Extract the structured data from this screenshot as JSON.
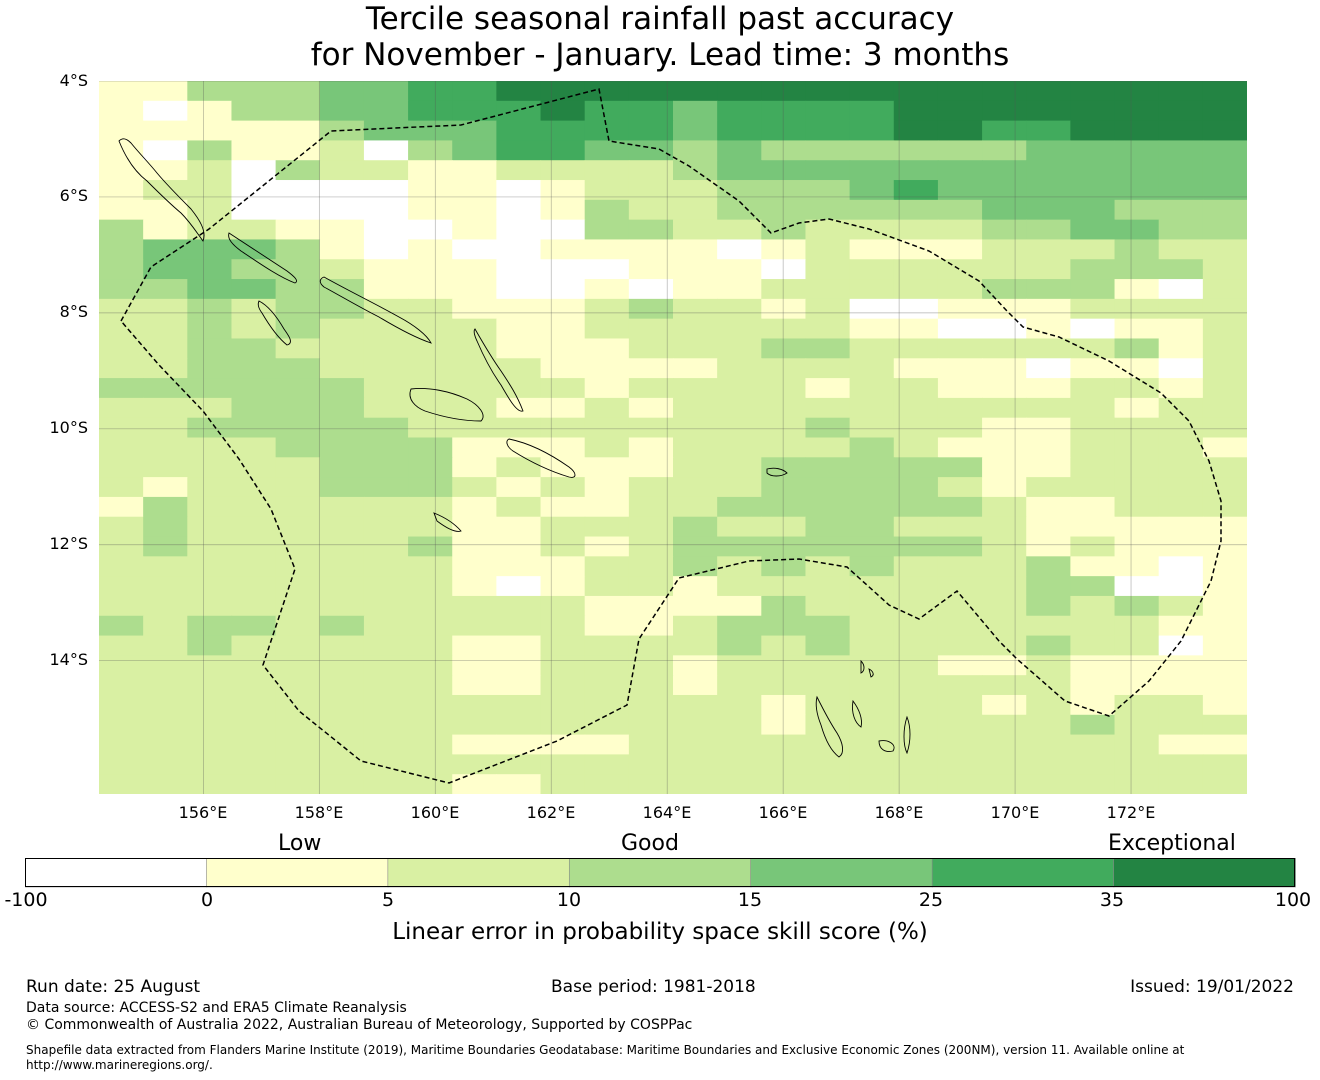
{
  "title": {
    "line1": "Tercile seasonal rainfall past accuracy",
    "line2": "for November - January. Lead time: 3 months"
  },
  "map": {
    "lat_labels": [
      "4°S",
      "6°S",
      "8°S",
      "10°S",
      "12°S",
      "14°S"
    ],
    "lon_labels": [
      "156°E",
      "158°E",
      "160°E",
      "162°E",
      "164°E",
      "166°E",
      "168°E",
      "170°E",
      "172°E"
    ],
    "cell_colors": [
      "#ffffff",
      "#ffffcc",
      "#d9f0a3",
      "#addd8e",
      "#78c679",
      "#41ab5d",
      "#238443"
    ],
    "skill_grid": [
      "11333445566666666666666666",
      "10133445556554555566666666",
      "11111344455554555566556666",
      "10311203455443433333344444",
      "11203221122223444444444444",
      "12200001101222333454444444",
      "11200001101322333333444333",
      "31221100100332232222334433",
      "34443101001111012111222322",
      "34433211100011102222223332",
      "33443311100101122222333102",
      "22323322111232212001112222",
      "22323222211222222110010112",
      "22332222211122233222222312",
      "22333222221111222211101102",
      "33333322222122221221112212",
      "22233322211212222222222122",
      "22333332222222223222112222",
      "22223333111212222321112221",
      "22222333121112233333112222",
      "21222333212122233332122222",
      "13222222121122333333211222",
      "23222222112223223322211111",
      "23222223112123333333212111",
      "22222222111223232322231101",
      "22222222101221222222233001",
      "22222222222111132222232321",
      "32332322222112333222222211",
      "22322222112222323222232201",
      "22222222112221222221121111",
      "22222222112221222222221111",
      "22222222222222212222121221",
      "22222222222222212222223222",
      "22222222111122222222222211",
      "22222222222222222222222222",
      "22222222112222222222222222"
    ]
  },
  "colorbar": {
    "categories": [
      "Low",
      "Good",
      "Exceptional"
    ],
    "ticks": [
      "-100",
      "0",
      "5",
      "10",
      "15",
      "25",
      "35",
      "100"
    ],
    "colors": [
      "#ffffff",
      "#ffffcc",
      "#d9f0a3",
      "#addd8e",
      "#78c679",
      "#41ab5d",
      "#238443"
    ],
    "label": "Linear error in probability space skill score (%)"
  },
  "footer": {
    "run_date": "Run date: 25 August",
    "base_period": "Base period: 1981-2018",
    "issued": "Issued: 19/01/2022",
    "data_source": "Data source: ACCESS-S2 and ERA5 Climate Reanalysis",
    "copyright": "© Commonwealth of Australia 2022, Australian Bureau of Meteorology, Supported by COSPPac",
    "shapefile_line1": "Shapefile data extracted from Flanders Marine Institute (2019), Maritime Boundaries Geodatabase: Maritime Boundaries and Exclusive Economic Zones (200NM), version 11. Available online at",
    "shapefile_line2": "http://www.marineregions.org/."
  }
}
